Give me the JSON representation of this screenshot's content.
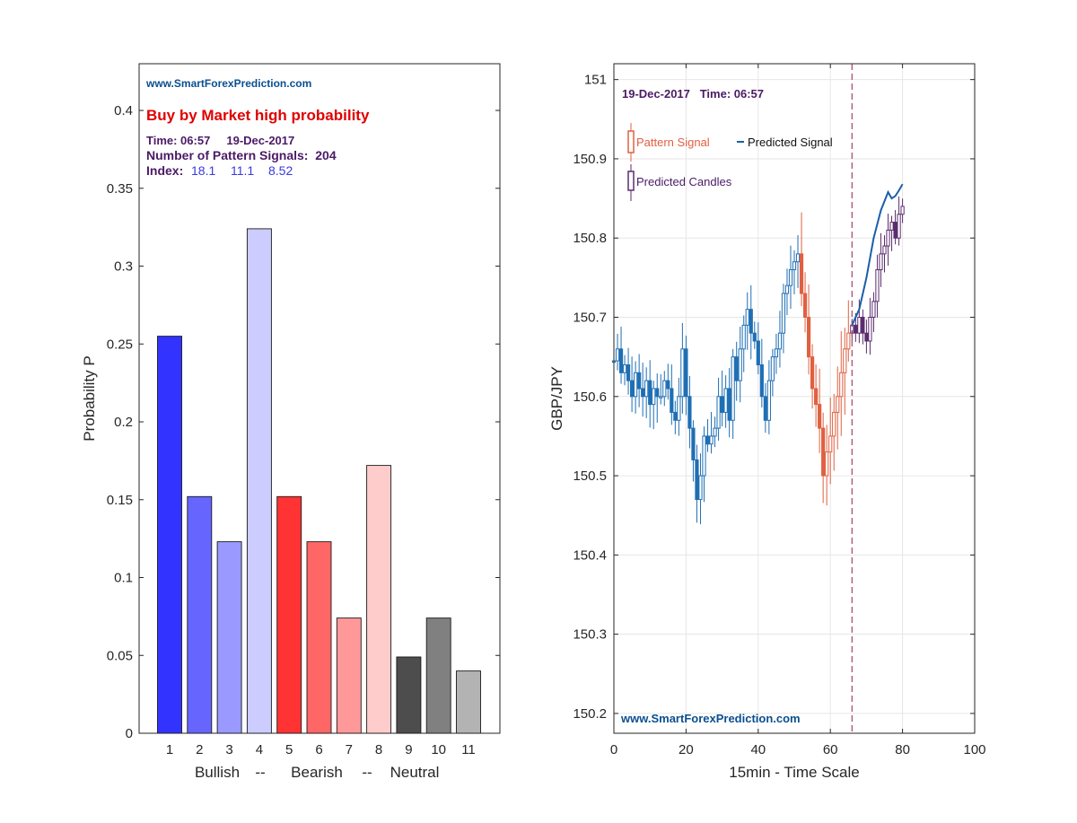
{
  "chart_data": [
    {
      "type": "bar",
      "categories": [
        "1",
        "2",
        "3",
        "4",
        "5",
        "6",
        "7",
        "8",
        "9",
        "10",
        "11"
      ],
      "values": [
        0.255,
        0.152,
        0.123,
        0.324,
        0.152,
        0.123,
        0.074,
        0.172,
        0.049,
        0.074,
        0.04
      ],
      "bar_colors": [
        "#3333ff",
        "#6666ff",
        "#9999ff",
        "#ccccff",
        "#ff3333",
        "#ff6666",
        "#ff9999",
        "#ffcccc",
        "#4d4d4d",
        "#808080",
        "#b3b3b3"
      ],
      "ylabel": "Probability P",
      "xlabel_parts": [
        "Bullish",
        "--",
        "Bearish",
        "--",
        "Neutral"
      ],
      "ylim": [
        0,
        0.43
      ],
      "yticks": [
        "0",
        "0.05",
        "0.1",
        "0.15",
        "0.2",
        "0.25",
        "0.3",
        "0.35",
        "0.4"
      ],
      "grid": false,
      "watermark": "www.SmartForexPrediction.com",
      "headline": "Buy by Market high probability",
      "time_line": "Time: 06:57     19-Dec-2017",
      "signals_line": "Number of Pattern Signals:  204",
      "index_label": "Index:",
      "index_values": [
        "18.1",
        "11.1",
        "8.52"
      ]
    },
    {
      "type": "candlestick",
      "ylabel": "GBP/JPY",
      "xlabel": "15min - Time Scale",
      "xlim": [
        0,
        100
      ],
      "ylim": [
        150.175,
        151.02
      ],
      "xticks": [
        "0",
        "20",
        "40",
        "60",
        "80",
        "100"
      ],
      "yticks": [
        "150.2",
        "150.3",
        "150.4",
        "150.5",
        "150.6",
        "150.7",
        "150.8",
        "150.9",
        "151"
      ],
      "grid": true,
      "date_time": "19-Dec-2017   Time: 06:57",
      "watermark": "www.SmartForexPrediction.com",
      "vline_x": 66,
      "legend": {
        "pattern_signal": "Pattern Signal",
        "predicted_signal": "Predicted Signal",
        "predicted_candles": "Predicted Candles"
      },
      "colors": {
        "history": "#1f6fb4",
        "pattern": "#e06040",
        "predicted": "#5a2d6e",
        "signal": "#1a5fa8",
        "vline": "#a0456e"
      },
      "history_closes": [
        150.645,
        150.66,
        150.63,
        150.64,
        150.62,
        150.6,
        150.63,
        150.61,
        150.6,
        150.62,
        150.59,
        150.61,
        150.6,
        150.6,
        150.62,
        150.61,
        150.58,
        150.57,
        150.6,
        150.66,
        150.6,
        150.56,
        150.52,
        150.47,
        150.5,
        150.55,
        150.54,
        150.55,
        150.56,
        150.6,
        150.58,
        150.61,
        150.57,
        150.65,
        150.62,
        150.66,
        150.69,
        150.71,
        150.68,
        150.67,
        150.64,
        150.6,
        150.57,
        150.62,
        150.65,
        150.66,
        150.68,
        150.73,
        150.74,
        150.76,
        150.77,
        150.78
      ],
      "pattern_closes": [
        150.73,
        150.7,
        150.65,
        150.61,
        150.59,
        150.56,
        150.5,
        150.53,
        150.55,
        150.58,
        150.6,
        150.63,
        150.66,
        150.68
      ],
      "predicted_closes": [
        150.69,
        150.68,
        150.7,
        150.68,
        150.67,
        150.7,
        150.72,
        150.76,
        150.78,
        150.79,
        150.81,
        150.82,
        150.8,
        150.83,
        150.84
      ],
      "signal_x": [
        66,
        68,
        70,
        72,
        74,
        76,
        77,
        78,
        79,
        80
      ],
      "signal_y": [
        150.69,
        150.71,
        150.75,
        150.8,
        150.835,
        150.858,
        150.85,
        150.853,
        150.86,
        150.868
      ]
    }
  ]
}
